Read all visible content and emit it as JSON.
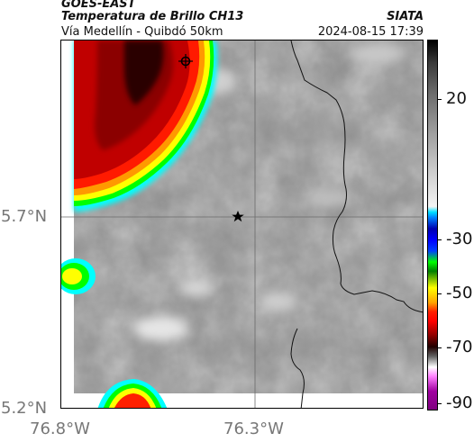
{
  "header": {
    "source": "GOES-EAST",
    "product": "Temperatura de Brillo CH13",
    "region": "Vía Medellín - Quibdó 50km",
    "org": "SIATA",
    "datetime": "2024-08-15 17:39"
  },
  "axes": {
    "lat_labels": [
      "5.7°N",
      "5.2°N"
    ],
    "lon_labels": [
      "76.8°W",
      "76.3°W"
    ]
  },
  "colorbar": {
    "labels": [
      "20",
      "-30",
      "-50",
      "-70",
      "-90"
    ],
    "colors": {
      "warm": "#000000",
      "gray": "#9a9a9a",
      "light": "#f4f4f4",
      "cyan": "#00e0ff",
      "blue": "#0000ff",
      "green": "#00ff00",
      "yellow": "#ffff00",
      "orange": "#ffa500",
      "red": "#ff0000",
      "dark_red": "#8b0000",
      "magenta": "#a000a0"
    }
  },
  "map": {
    "marker_icon": "star-icon",
    "target_icon": "crosshair-circle-icon",
    "gridlines": true,
    "borders": true
  }
}
